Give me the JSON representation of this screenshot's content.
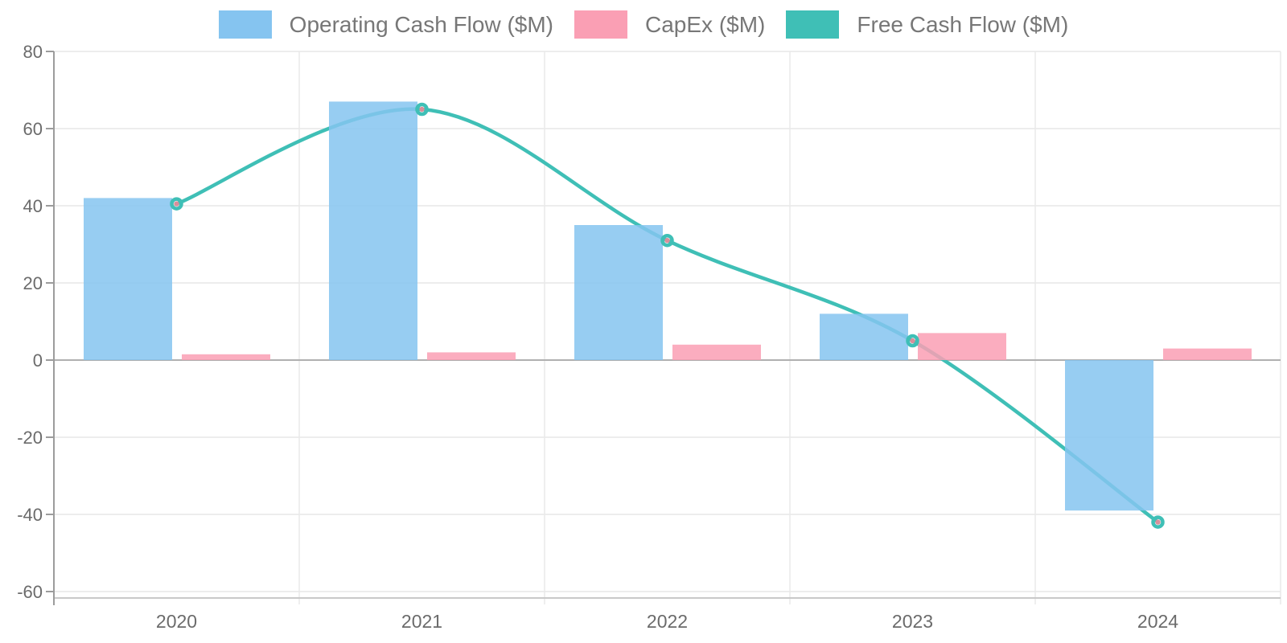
{
  "chart_data": {
    "type": "combo",
    "title": "",
    "xlabel": "",
    "ylabel": "",
    "categories": [
      "2020",
      "2021",
      "2022",
      "2023",
      "2024"
    ],
    "series": [
      {
        "name": "Operating Cash Flow ($M)",
        "type": "bar",
        "values": [
          42,
          67,
          35,
          12,
          -39
        ],
        "color": "#85C4F0"
      },
      {
        "name": "CapEx ($M)",
        "type": "bar",
        "values": [
          1.5,
          2,
          4,
          7,
          3
        ],
        "color": "#FA9FB4"
      },
      {
        "name": "Free Cash Flow ($M)",
        "type": "line",
        "values": [
          40.5,
          65,
          31,
          5,
          -42
        ],
        "color": "#3FBFB6",
        "marker_center_color": "#D98F9B"
      }
    ],
    "ylim": [
      -60,
      80
    ],
    "yticks": [
      80,
      60,
      40,
      20,
      0,
      -20,
      -40,
      -60
    ],
    "grid": true,
    "legend_position": "top"
  },
  "colors": {
    "grid_line": "#E7E7E7",
    "vertical_grid_line": "#EAEAEA",
    "zero_line": "#B0B0B0",
    "axis_line": "#9C9C9C",
    "bottom_border": "#C9C9C9",
    "tick_label": "#6B6B6B",
    "legend_text": "#777777"
  }
}
